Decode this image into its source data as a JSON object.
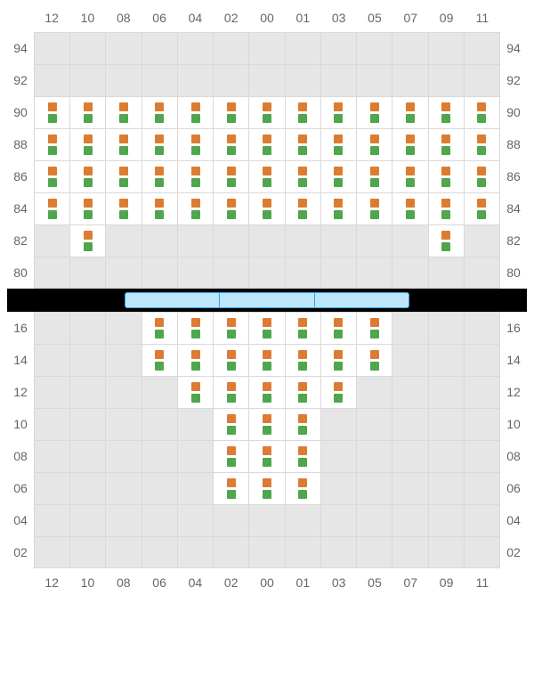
{
  "colors": {
    "seat_top": "#dc7c33",
    "seat_bottom": "#4fa64d",
    "cell_empty": "#e6e6e6",
    "cell_seat": "#ffffff",
    "grid_border": "#d9d9d9",
    "separator_bg": "#000000",
    "judge_fill": "#bfe5fb",
    "judge_border": "#2fa4e7",
    "label_color": "#666666"
  },
  "column_labels": [
    "12",
    "10",
    "08",
    "06",
    "04",
    "02",
    "00",
    "01",
    "03",
    "05",
    "07",
    "09",
    "11"
  ],
  "top": {
    "row_labels": [
      "94",
      "92",
      "90",
      "88",
      "86",
      "84",
      "82",
      "80"
    ],
    "seat_map": [
      [
        0,
        0,
        0,
        0,
        0,
        0,
        0,
        0,
        0,
        0,
        0,
        0,
        0
      ],
      [
        0,
        0,
        0,
        0,
        0,
        0,
        0,
        0,
        0,
        0,
        0,
        0,
        0
      ],
      [
        1,
        1,
        1,
        1,
        1,
        1,
        1,
        1,
        1,
        1,
        1,
        1,
        1
      ],
      [
        1,
        1,
        1,
        1,
        1,
        1,
        1,
        1,
        1,
        1,
        1,
        1,
        1
      ],
      [
        1,
        1,
        1,
        1,
        1,
        1,
        1,
        1,
        1,
        1,
        1,
        1,
        1
      ],
      [
        1,
        1,
        1,
        1,
        1,
        1,
        1,
        1,
        1,
        1,
        1,
        1,
        1
      ],
      [
        0,
        1,
        0,
        0,
        0,
        0,
        0,
        0,
        0,
        0,
        0,
        1,
        0
      ],
      [
        0,
        0,
        0,
        0,
        0,
        0,
        0,
        0,
        0,
        0,
        0,
        0,
        0
      ]
    ]
  },
  "bottom": {
    "row_labels": [
      "16",
      "14",
      "12",
      "10",
      "08",
      "06",
      "04",
      "02"
    ],
    "seat_map": [
      [
        0,
        0,
        0,
        1,
        1,
        1,
        1,
        1,
        1,
        1,
        0,
        0,
        0
      ],
      [
        0,
        0,
        0,
        1,
        1,
        1,
        1,
        1,
        1,
        1,
        0,
        0,
        0
      ],
      [
        0,
        0,
        0,
        0,
        1,
        1,
        1,
        1,
        1,
        0,
        0,
        0,
        0
      ],
      [
        0,
        0,
        0,
        0,
        0,
        1,
        1,
        1,
        0,
        0,
        0,
        0,
        0
      ],
      [
        0,
        0,
        0,
        0,
        0,
        1,
        1,
        1,
        0,
        0,
        0,
        0,
        0
      ],
      [
        0,
        0,
        0,
        0,
        0,
        1,
        1,
        1,
        0,
        0,
        0,
        0,
        0
      ],
      [
        0,
        0,
        0,
        0,
        0,
        0,
        0,
        0,
        0,
        0,
        0,
        0,
        0
      ],
      [
        0,
        0,
        0,
        0,
        0,
        0,
        0,
        0,
        0,
        0,
        0,
        0,
        0
      ]
    ]
  },
  "judge_tables": 3
}
